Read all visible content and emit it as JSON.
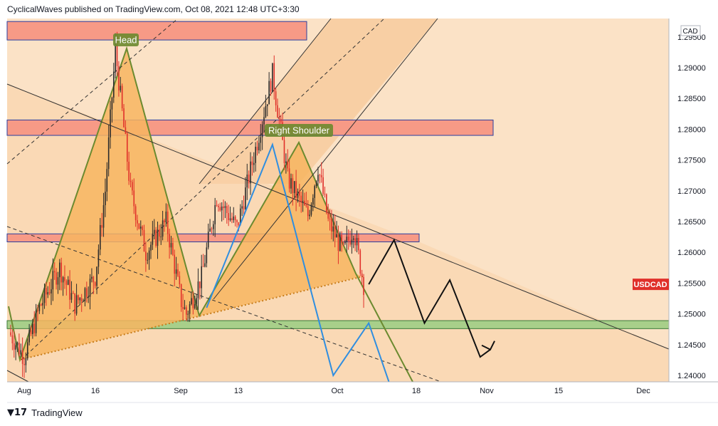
{
  "header": {
    "publish_line": "CyclicalWaves published on TradingView.com, Oct 08, 2021 12:48 UTC+3:30"
  },
  "footer": {
    "brand": "TradingView"
  },
  "colors": {
    "background": "#fbe2c6",
    "wedge_fill": "#f7b560",
    "resistance_zone": "#f79a86",
    "support_zone": "#a8cf8a",
    "bull_candle": "#2b2b2b",
    "bear_candle": "#e0302a",
    "pattern_line": "#6b8a2f",
    "projection_blue": "#2f8ee0",
    "price_badge": "#e0302a"
  },
  "chart_data": {
    "type": "candlestick",
    "symbol_badge": "USDCAD",
    "currency_label": "CAD",
    "y_axis": {
      "ylim": [
        1.2365,
        1.2952
      ],
      "ticks": [
        "1.29500",
        "1.29000",
        "1.28500",
        "1.28000",
        "1.27500",
        "1.27000",
        "1.26500",
        "1.26000",
        "1.25500",
        "1.25000",
        "1.24500",
        "1.24000"
      ]
    },
    "x_axis": {
      "ticks": [
        "Aug",
        "16",
        "Sep",
        "13",
        "Oct",
        "18",
        "Nov",
        "15",
        "Dec"
      ]
    },
    "annotations": [
      "Head",
      "Right Shoulder"
    ],
    "zones": [
      {
        "kind": "resistance",
        "low": 1.2945,
        "high": 1.2975
      },
      {
        "kind": "resistance",
        "low": 1.279,
        "high": 1.2815
      },
      {
        "kind": "resistance",
        "low": 1.2617,
        "high": 1.263
      },
      {
        "kind": "support",
        "low": 1.2476,
        "high": 1.2489
      }
    ],
    "price_path": [
      [
        "2021-07-30",
        1.247
      ],
      [
        "2021-08-02",
        1.243
      ],
      [
        "2021-08-05",
        1.251
      ],
      [
        "2021-08-09",
        1.2575
      ],
      [
        "2021-08-12",
        1.2515
      ],
      [
        "2021-08-16",
        1.256
      ],
      [
        "2021-08-18",
        1.27
      ],
      [
        "2021-08-20",
        1.293
      ],
      [
        "2021-08-23",
        1.27
      ],
      [
        "2021-08-26",
        1.26
      ],
      [
        "2021-08-30",
        1.265
      ],
      [
        "2021-09-02",
        1.252
      ],
      [
        "2021-09-03",
        1.25
      ],
      [
        "2021-09-06",
        1.256
      ],
      [
        "2021-09-09",
        1.269
      ],
      [
        "2021-09-13",
        1.264
      ],
      [
        "2021-09-17",
        1.278
      ],
      [
        "2021-09-20",
        1.289
      ],
      [
        "2021-09-23",
        1.272
      ],
      [
        "2021-09-27",
        1.266
      ],
      [
        "2021-09-29",
        1.274
      ],
      [
        "2021-10-01",
        1.265
      ],
      [
        "2021-10-04",
        1.26
      ],
      [
        "2021-10-06",
        1.264
      ],
      [
        "2021-10-08",
        1.2548
      ]
    ],
    "projection_black": [
      [
        "2021-10-09",
        1.2548
      ],
      [
        "2021-10-14",
        1.262
      ],
      [
        "2021-10-20",
        1.2485
      ],
      [
        "2021-10-25",
        1.2555
      ],
      [
        "2021-10-31",
        1.243
      ],
      [
        "2021-11-02",
        1.2442
      ]
    ],
    "projection_blue": [
      [
        "2021-09-07",
        1.251
      ],
      [
        "2021-09-20",
        1.2775
      ],
      [
        "2021-10-02",
        1.24
      ],
      [
        "2021-10-09",
        1.2485
      ],
      [
        "2021-10-14",
        1.2365
      ]
    ],
    "last_price": 1.2548
  }
}
